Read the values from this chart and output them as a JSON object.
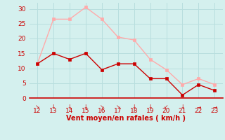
{
  "x": [
    12,
    13,
    14,
    15,
    16,
    17,
    18,
    19,
    20,
    21,
    22,
    23
  ],
  "y_mean": [
    11.5,
    15.0,
    13.0,
    15.0,
    9.5,
    11.5,
    11.5,
    6.5,
    6.5,
    1.0,
    4.5,
    2.5
  ],
  "y_gust": [
    11.5,
    26.5,
    26.5,
    30.5,
    26.5,
    20.5,
    19.5,
    13.0,
    9.5,
    4.5,
    6.5,
    4.5
  ],
  "mean_color": "#cc0000",
  "gust_color": "#ffaaaa",
  "bg_color": "#d4f0ee",
  "grid_color": "#b8dede",
  "axis_color": "#cc0000",
  "xlabel": "Vent moyen/en rafales ( km/h )",
  "ylim": [
    0,
    32
  ],
  "xlim": [
    11.5,
    23.5
  ],
  "yticks": [
    0,
    5,
    10,
    15,
    20,
    25,
    30
  ],
  "xticks": [
    12,
    13,
    14,
    15,
    16,
    17,
    18,
    19,
    20,
    21,
    22,
    23
  ],
  "wind_dirs": {
    "12": "↘",
    "13": "↓",
    "14": "↓",
    "15": "↓",
    "16": "↘",
    "17": "↘",
    "18": "↓",
    "19": "↓",
    "20": "↙",
    "21": "↓",
    "22": "→",
    "23": "→"
  }
}
